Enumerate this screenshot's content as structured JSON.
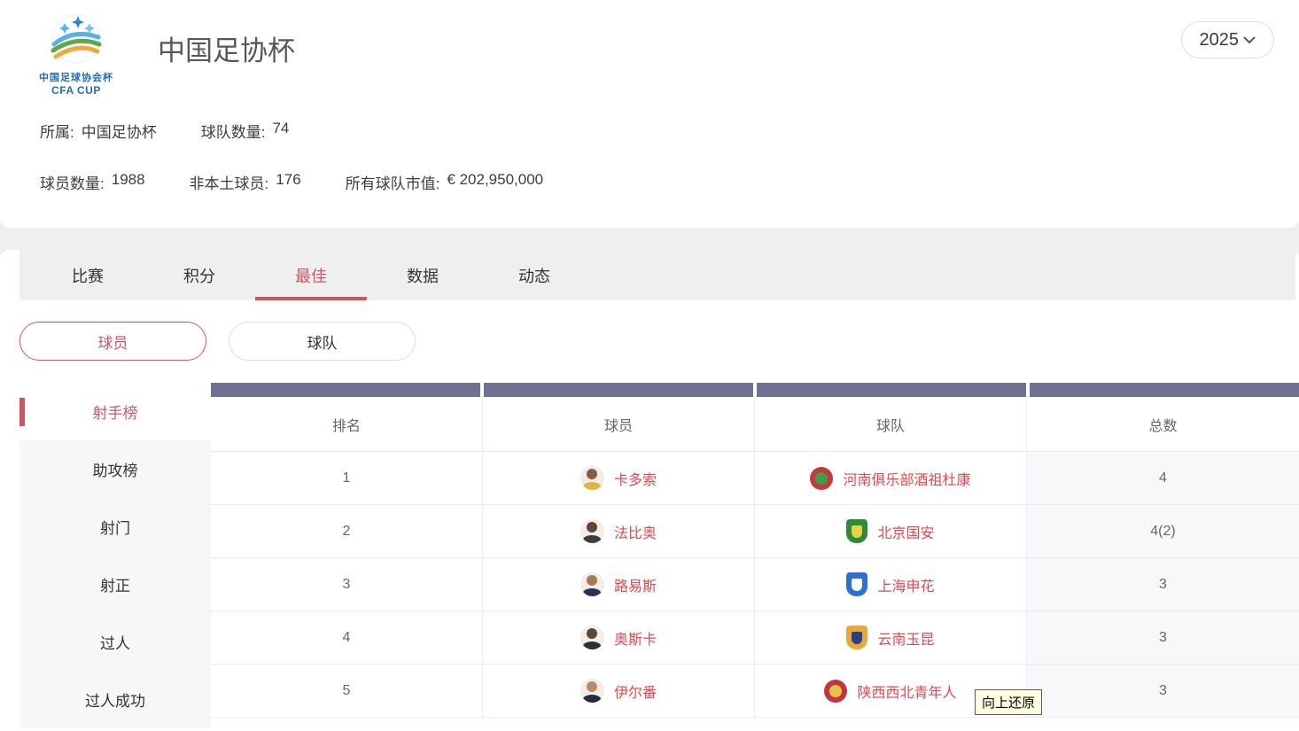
{
  "header": {
    "title": "中国足协杯",
    "logo": {
      "line1": "中国足球协会杯",
      "line2": "CFA CUP"
    },
    "year_selector": {
      "value": "2025"
    },
    "stats_row1": [
      {
        "label": "所属:",
        "value": "中国足协杯"
      },
      {
        "label": "球队数量:",
        "value": "74"
      }
    ],
    "stats_row2": [
      {
        "label": "球员数量:",
        "value": "1988"
      },
      {
        "label": "非本土球员:",
        "value": "176"
      },
      {
        "label": "所有球队市值:",
        "value": "€ 202,950,000"
      }
    ]
  },
  "tabs": [
    {
      "key": "matches",
      "label": "比赛",
      "active": false
    },
    {
      "key": "standings",
      "label": "积分",
      "active": false
    },
    {
      "key": "best",
      "label": "最佳",
      "active": true
    },
    {
      "key": "data",
      "label": "数据",
      "active": false
    },
    {
      "key": "news",
      "label": "动态",
      "active": false
    }
  ],
  "filter_pills": [
    {
      "key": "players",
      "label": "球员",
      "active": true
    },
    {
      "key": "teams",
      "label": "球队",
      "active": false
    }
  ],
  "sidebar": {
    "items": [
      {
        "key": "top-scorers",
        "label": "射手榜",
        "active": true
      },
      {
        "key": "assists",
        "label": "助攻榜",
        "active": false
      },
      {
        "key": "shots",
        "label": "射门",
        "active": false
      },
      {
        "key": "shots-on-target",
        "label": "射正",
        "active": false
      },
      {
        "key": "dribbles",
        "label": "过人",
        "active": false
      },
      {
        "key": "dribbles-success",
        "label": "过人成功",
        "active": false
      }
    ]
  },
  "table": {
    "columns": [
      "排名",
      "球员",
      "球队",
      "总数"
    ],
    "rows": [
      {
        "rank": "1",
        "player": "卡多索",
        "team": "河南俱乐部酒祖杜康",
        "total": "4",
        "skin": "#8a5c3f",
        "shirt": "#e2b33f",
        "crest": {
          "shape": "circle",
          "outer": "#c43a3a",
          "inner": "#3f9e4d"
        }
      },
      {
        "rank": "2",
        "player": "法比奥",
        "team": "北京国安",
        "total": "4(2)",
        "skin": "#5f4636",
        "shirt": "#3c3c3c",
        "crest": {
          "shape": "shield",
          "outer": "#2e8b35",
          "inner": "#e8d24a"
        }
      },
      {
        "rank": "3",
        "player": "路易斯",
        "team": "上海申花",
        "total": "3",
        "skin": "#a87952",
        "shirt": "#27344d",
        "crest": {
          "shape": "shield",
          "outer": "#2d6fd2",
          "inner": "#ffffff"
        }
      },
      {
        "rank": "4",
        "player": "奥斯卡",
        "team": "云南玉昆",
        "total": "3",
        "skin": "#5f4636",
        "shirt": "#2f2f2f",
        "crest": {
          "shape": "shield",
          "outer": "#e8a93a",
          "inner": "#2b3f8c"
        }
      },
      {
        "rank": "5",
        "player": "伊尔番",
        "team": "陕西西北青年人",
        "total": "3",
        "skin": "#b98a63",
        "shirt": "#222d3e",
        "crest": {
          "shape": "circle",
          "outer": "#c03540",
          "inner": "#e7c34a"
        }
      }
    ]
  },
  "tooltip": {
    "text": "向上还原"
  },
  "colors": {
    "accent": "#d05560",
    "link": "#e0484f",
    "headbar": "#6f7190",
    "gap_bg": "#edeff0"
  }
}
